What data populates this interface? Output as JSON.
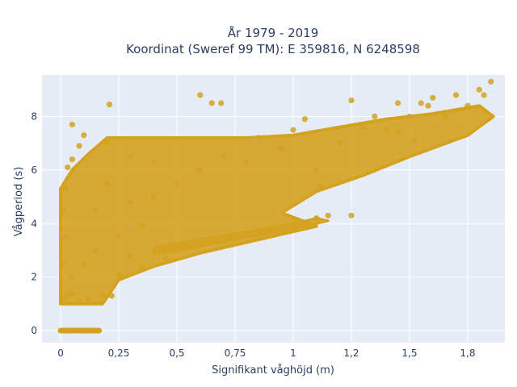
{
  "chart_data": {
    "type": "scatter",
    "title_line1": "År 1979 - 2019",
    "title_line2": "Koordinat (Sweref 99 TM): E 359816, N 6248598",
    "xlabel": "Signifikant våghöjd (m)",
    "ylabel": "Vågperiod (s)",
    "xlim": [
      -0.08,
      1.91
    ],
    "ylim": [
      -0.45,
      9.55
    ],
    "x_ticks": [
      0,
      0.25,
      0.5,
      0.75,
      1,
      1.25,
      1.5,
      1.75
    ],
    "x_tick_labels": [
      "0",
      "0,25",
      "0,5",
      "0,75",
      "1",
      "1,2",
      "1,5",
      "1,8"
    ],
    "y_ticks": [
      0,
      2,
      4,
      6,
      8
    ],
    "y_tick_labels": [
      "0",
      "2",
      "4",
      "6",
      "8"
    ],
    "grid": true,
    "colors": {
      "marker": "#d4a21f",
      "plot_bg": "#e5ecf6",
      "grid": "#ffffff",
      "text": "#2a3f5f"
    },
    "series": [
      {
        "marker": "circle",
        "points": [
          [
            0.02,
            0
          ],
          [
            0.04,
            0
          ],
          [
            0.06,
            0
          ],
          [
            0.08,
            0
          ],
          [
            0.1,
            0
          ],
          [
            0.12,
            0
          ],
          [
            0.14,
            0
          ],
          [
            0.16,
            0
          ],
          [
            0.01,
            1.2
          ],
          [
            0.03,
            1.3
          ],
          [
            0.05,
            1.4
          ],
          [
            0.08,
            1.1
          ],
          [
            0.12,
            1.2
          ],
          [
            0.18,
            1.3
          ],
          [
            0.22,
            1.3
          ],
          [
            0.01,
            2.5
          ],
          [
            0.02,
            3.5
          ],
          [
            0.01,
            4.5
          ],
          [
            0.02,
            5.3
          ],
          [
            0.03,
            6.1
          ],
          [
            0.05,
            6.4
          ],
          [
            0.05,
            7.7
          ],
          [
            0.08,
            6.9
          ],
          [
            0.1,
            7.3
          ],
          [
            0.2,
            7.0
          ],
          [
            0.21,
            8.45
          ],
          [
            0.05,
            2.0
          ],
          [
            0.1,
            2.5
          ],
          [
            0.15,
            3.0
          ],
          [
            0.25,
            3.5
          ],
          [
            0.3,
            2.8
          ],
          [
            0.35,
            3.9
          ],
          [
            0.15,
            4.5
          ],
          [
            0.2,
            5.5
          ],
          [
            0.3,
            6.5
          ],
          [
            0.3,
            4.8
          ],
          [
            0.4,
            5.0
          ],
          [
            0.25,
            2.1
          ],
          [
            0.35,
            2.4
          ],
          [
            0.45,
            2.7
          ],
          [
            0.5,
            3.0
          ],
          [
            0.6,
            3.2
          ],
          [
            0.7,
            3.4
          ],
          [
            0.8,
            3.6
          ],
          [
            0.9,
            3.8
          ],
          [
            1.0,
            3.9
          ],
          [
            1.1,
            4.2
          ],
          [
            1.15,
            4.3
          ],
          [
            1.25,
            4.3
          ],
          [
            0.4,
            6.3
          ],
          [
            0.5,
            5.5
          ],
          [
            0.6,
            6.0
          ],
          [
            0.6,
            8.8
          ],
          [
            0.7,
            6.5
          ],
          [
            0.65,
            8.5
          ],
          [
            0.69,
            8.5
          ],
          [
            0.8,
            6.3
          ],
          [
            0.85,
            7.2
          ],
          [
            0.95,
            6.8
          ],
          [
            1.0,
            7.5
          ],
          [
            1.05,
            7.9
          ],
          [
            1.1,
            6.0
          ],
          [
            1.12,
            5.4
          ],
          [
            1.2,
            7.0
          ],
          [
            1.25,
            8.6
          ],
          [
            1.3,
            7.6
          ],
          [
            1.35,
            8.0
          ],
          [
            1.4,
            7.5
          ],
          [
            1.45,
            8.5
          ],
          [
            1.5,
            8.0
          ],
          [
            1.55,
            8.5
          ],
          [
            1.58,
            8.4
          ],
          [
            1.6,
            8.7
          ],
          [
            1.65,
            8.0
          ],
          [
            1.7,
            8.8
          ],
          [
            1.75,
            8.4
          ],
          [
            1.8,
            9.0
          ],
          [
            1.85,
            9.3
          ],
          [
            1.82,
            8.8
          ],
          [
            1.52,
            7.1
          ],
          [
            1.45,
            7.4
          ]
        ]
      }
    ]
  }
}
